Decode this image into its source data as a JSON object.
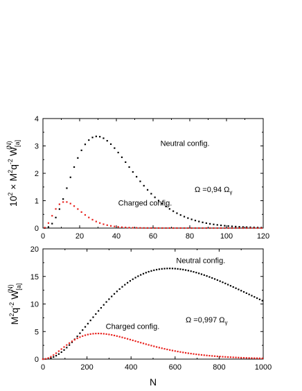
{
  "chart_data": [
    {
      "type": "scatter",
      "xlim": [
        0,
        120
      ],
      "ylim": [
        0,
        4
      ],
      "xticks": [
        0,
        20,
        40,
        60,
        80,
        100,
        120
      ],
      "yticks": [
        0,
        1,
        2,
        3,
        4
      ],
      "ylabel": {
        "prefix": "10",
        "prefix_sup": "2",
        "mid": " × M",
        "m_sup": "2",
        "q": "q",
        "q_sup": "-2",
        "w": " W",
        "w_sub": "[a]",
        "w_sup": "(N)"
      },
      "annotation_omega": {
        "text": "Ω =0,94 Ω",
        "sub": "γ"
      },
      "series": [
        {
          "name": "Neutral config.",
          "color": "#000000",
          "model": "gamma",
          "peak": 3.35,
          "peak_x": 29.5,
          "shape": 3.2,
          "x_start": 1,
          "x_end": 120,
          "step": 2
        },
        {
          "name": "Charged config.",
          "color": "#e8201c",
          "model": "gamma",
          "peak": 0.96,
          "peak_x": 12,
          "shape": 2.6,
          "x_start": 1,
          "x_end": 120,
          "step": 2
        }
      ],
      "labels": [
        {
          "text": "Neutral config.",
          "x": 64,
          "y": 3.0
        },
        {
          "text": "Charged config.",
          "x": 41,
          "y": 0.82
        }
      ]
    },
    {
      "type": "scatter",
      "xlim": [
        0,
        1000
      ],
      "ylim": [
        0,
        20
      ],
      "xticks": [
        0,
        200,
        400,
        600,
        800,
        1000
      ],
      "yticks": [
        0,
        5,
        10,
        15,
        20
      ],
      "xlabel": "N",
      "ylabel": {
        "mid": "M",
        "m_sup": "2",
        "q": "q",
        "q_sup": "-2",
        "w": " W",
        "w_sub": "[a]",
        "w_sup": "(N)"
      },
      "annotation_omega": {
        "text": "Ω =0,997 Ω",
        "sub": "γ"
      },
      "series": [
        {
          "name": "Neutral config.",
          "color": "#000000",
          "model": "gamma",
          "peak": 16.45,
          "peak_x": 575,
          "shape": 2.4,
          "x_start": 0,
          "x_end": 1000,
          "step": 12
        },
        {
          "name": "Charged config.",
          "color": "#e8201c",
          "model": "gamma",
          "peak": 4.65,
          "peak_x": 250,
          "shape": 2.2,
          "x_start": 0,
          "x_end": 1000,
          "step": 12
        }
      ],
      "labels": [
        {
          "text": "Neutral config.",
          "x": 605,
          "y": 17.4
        },
        {
          "text": "Charged config.",
          "x": 285,
          "y": 5.5
        }
      ]
    }
  ]
}
